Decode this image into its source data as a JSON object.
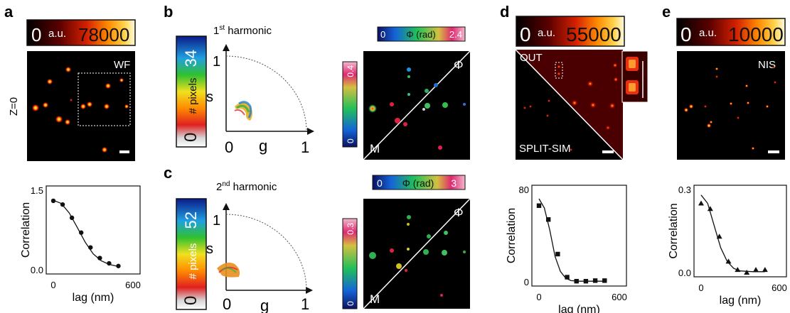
{
  "panels": {
    "a": {
      "letter": "a",
      "colorbar": {
        "min": "0",
        "unit": "a.u.",
        "max": "78000"
      },
      "image_label": "WF",
      "row_label": "Z=0",
      "chart_data": {
        "type": "line",
        "xlabel": "lag (nm)",
        "ylabel": "Correlation",
        "xlim": [
          0,
          600
        ],
        "ylim": [
          0,
          1.5
        ],
        "xticks": [
          "0",
          "600"
        ],
        "yticks": [
          "0.0",
          "1.5"
        ],
        "marker": "circle",
        "x": [
          0,
          70,
          140,
          210,
          280,
          350,
          420,
          490
        ],
        "y": [
          1.3,
          1.23,
          0.98,
          0.7,
          0.42,
          0.22,
          0.12,
          0.07
        ],
        "fit": {
          "x": [
            0,
            60,
            120,
            180,
            240,
            300,
            360,
            420,
            490
          ],
          "y": [
            1.31,
            1.25,
            1.07,
            0.8,
            0.52,
            0.3,
            0.17,
            0.1,
            0.06
          ]
        }
      }
    },
    "b": {
      "letter": "b",
      "harmonic": "1",
      "harmonic_sup": "st",
      "harmonic_label": "harmonic",
      "pixel_bar": {
        "min": "0",
        "label": "# pixels",
        "max": "34"
      },
      "axes": {
        "x": "g",
        "y": "s",
        "x0": "0",
        "x1": "1",
        "y1": "1"
      },
      "phase_bar": {
        "min": "0",
        "label": "Φ (rad)",
        "max": "2.4"
      },
      "mod_bar": {
        "min": "0",
        "max": "0.4"
      },
      "phi_label": "Φ",
      "m_label": "M"
    },
    "c": {
      "letter": "c",
      "harmonic": "2",
      "harmonic_sup": "nd",
      "harmonic_label": "harmonic",
      "pixel_bar": {
        "min": "0",
        "label": "# pixels",
        "max": "52"
      },
      "axes": {
        "x": "g",
        "y": "s",
        "x0": "0",
        "x1": "1",
        "y1": "1"
      },
      "phase_bar": {
        "min": "0",
        "label": "Φ (rad)",
        "max": "3"
      },
      "mod_bar": {
        "min": "0",
        "max": "0.3"
      },
      "phi_label": "Φ",
      "m_label": "M"
    },
    "d": {
      "letter": "d",
      "colorbar": {
        "min": "0",
        "unit": "a.u.",
        "max": "55000"
      },
      "label_top": "OUT",
      "label_bottom": "SPLIT-SIM",
      "chart_data": {
        "type": "line",
        "xlabel": "lag (nm)",
        "ylabel": "Correlation",
        "xlim": [
          0,
          600
        ],
        "ylim": [
          0,
          80
        ],
        "xticks": [
          "0",
          "600"
        ],
        "yticks": [
          "0",
          "80"
        ],
        "marker": "square",
        "x": [
          0,
          70,
          140,
          210,
          280,
          350,
          420,
          490
        ],
        "y": [
          66,
          54,
          24,
          4,
          0.5,
          0.5,
          1,
          1
        ],
        "fit": {
          "x": [
            0,
            40,
            80,
            120,
            160,
            200,
            240,
            300,
            400,
            490
          ],
          "y": [
            72,
            64,
            45,
            22,
            9,
            3,
            1,
            0.5,
            0.5,
            0.5
          ]
        }
      }
    },
    "e": {
      "letter": "e",
      "colorbar": {
        "min": "0",
        "unit": "a.u.",
        "max": "10000"
      },
      "image_label": "NIS",
      "chart_data": {
        "type": "line",
        "xlabel": "lag (nm)",
        "ylabel": "Correlation",
        "xlim": [
          0,
          600
        ],
        "ylim": [
          0,
          0.3
        ],
        "xticks": [
          "0",
          "600"
        ],
        "yticks": [
          "0.0",
          "0.3"
        ],
        "marker": "triangle",
        "x": [
          0,
          70,
          140,
          210,
          280,
          350,
          420,
          490
        ],
        "y": [
          0.25,
          0.23,
          0.13,
          0.04,
          0.01,
          0.0,
          0.01,
          0.01
        ],
        "fit": {
          "x": [
            0,
            50,
            100,
            150,
            200,
            250,
            300,
            400,
            490
          ],
          "y": [
            0.28,
            0.25,
            0.17,
            0.09,
            0.04,
            0.015,
            0.006,
            0.003,
            0.003
          ]
        }
      }
    }
  }
}
